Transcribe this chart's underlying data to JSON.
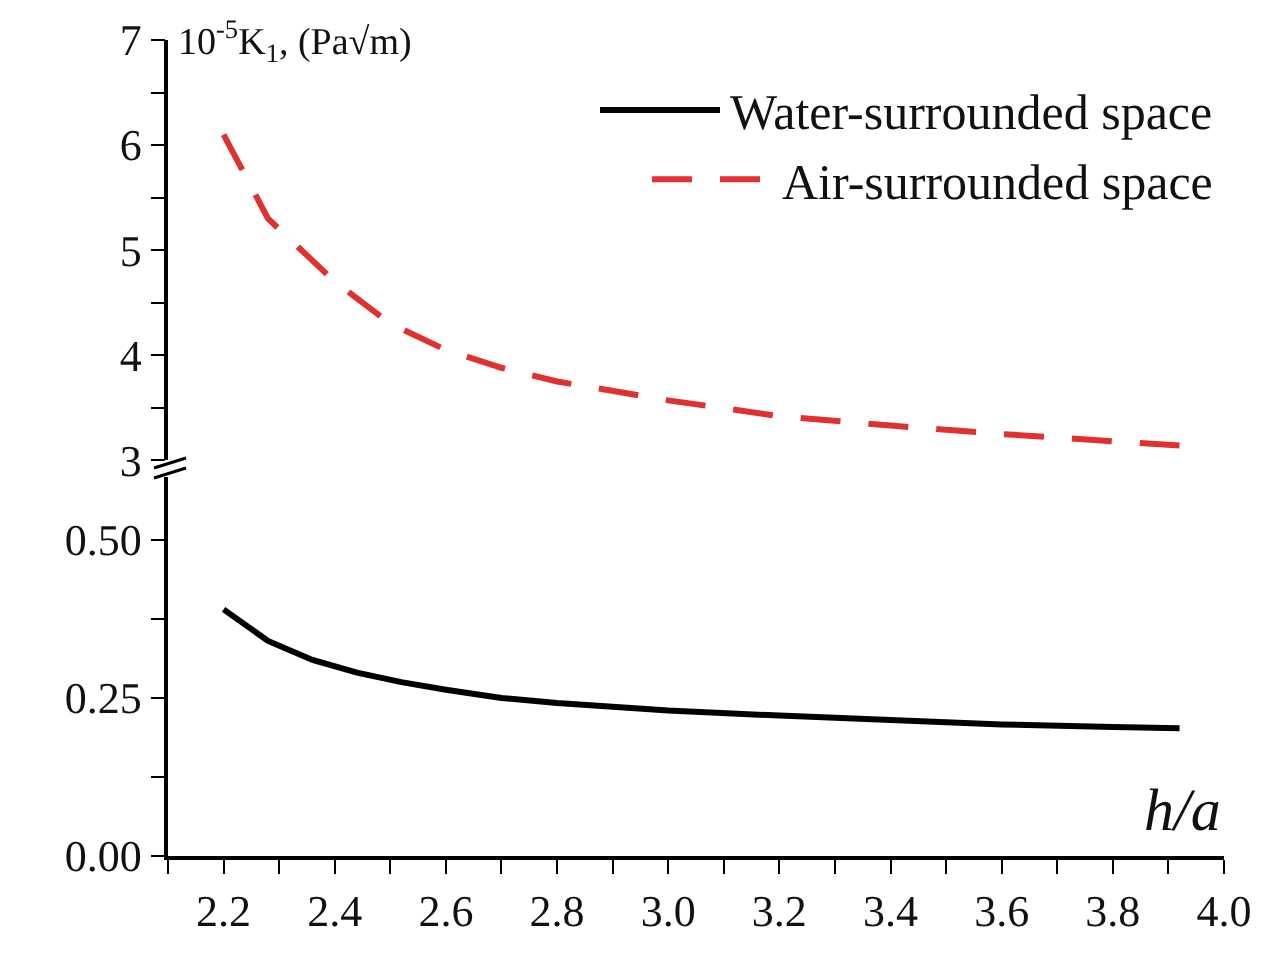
{
  "chart_data": [
    {
      "type": "line",
      "ylabel": "10$^{-5}$K$_{1}$, (Pa√m)",
      "tick_labels": "y",
      "xlim": [
        2.1,
        4.0
      ],
      "ylim": [
        3,
        7
      ],
      "yticks": [
        3,
        {
          "value": 3.5,
          "label": null
        },
        4,
        {
          "value": 4.5,
          "label": null
        },
        5,
        {
          "value": 5.5,
          "label": null
        },
        6,
        {
          "value": 6.5,
          "label": null
        },
        7
      ],
      "grid": false,
      "legend": "top right",
      "marker": "none",
      "series": [
        {
          "name": "Air-surrounded space",
          "color": "#e03030",
          "line_style": "dashed",
          "x": [
            2.2,
            2.28,
            2.4,
            2.5,
            2.6,
            2.7,
            2.8,
            3.0,
            3.2,
            3.4,
            3.6,
            3.8,
            3.92
          ],
          "values": [
            6.1,
            5.3,
            4.7,
            4.3,
            4.05,
            3.88,
            3.75,
            3.57,
            3.42,
            3.33,
            3.25,
            3.18,
            3.14
          ]
        }
      ]
    },
    {
      "type": "line",
      "xlabel": "h/a",
      "xlim": [
        2.1,
        4.0
      ],
      "xticks": [
        {
          "value": 2.1,
          "label": null
        },
        2.2,
        {
          "value": 2.3,
          "label": null
        },
        2.4,
        {
          "value": 2.5,
          "label": null
        },
        2.6,
        {
          "value": 2.7,
          "label": null
        },
        2.8,
        {
          "value": 2.9,
          "label": null
        },
        {
          "value": 3.0,
          "label": "3.0"
        },
        {
          "value": 3.1,
          "label": null
        },
        3.2,
        {
          "value": 3.3,
          "label": null
        },
        3.4,
        {
          "value": 3.5,
          "label": null
        },
        3.6,
        {
          "value": 3.7,
          "label": null
        },
        3.8,
        {
          "value": 3.9,
          "label": null
        },
        {
          "value": 4.0,
          "label": "4.0"
        }
      ],
      "ylim": [
        0,
        0.6
      ],
      "yticks": [
        {
          "value": 0,
          "label": "0.00"
        },
        {
          "value": 0.125,
          "label": null
        },
        {
          "value": 0.25,
          "label": "0.25"
        },
        {
          "value": 0.375,
          "label": null
        },
        {
          "value": 0.5,
          "label": "0.50"
        }
      ],
      "grid": false,
      "legend": "top right",
      "marker": "none",
      "series": [
        {
          "name": "Water-surrounded space",
          "color": "#000000",
          "line_style": "solid",
          "x": [
            2.2,
            2.28,
            2.36,
            2.44,
            2.52,
            2.6,
            2.7,
            2.8,
            3.0,
            3.2,
            3.4,
            3.6,
            3.8,
            3.92
          ],
          "values": [
            0.39,
            0.34,
            0.31,
            0.29,
            0.275,
            0.263,
            0.25,
            0.242,
            0.23,
            0.222,
            0.215,
            0.208,
            0.204,
            0.202
          ]
        }
      ]
    }
  ]
}
